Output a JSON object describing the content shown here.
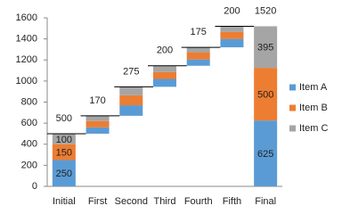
{
  "chart_data": {
    "type": "waterfall",
    "categories": [
      "Initial",
      "First",
      "Second",
      "Third",
      "Fourth",
      "Fifth",
      "Final"
    ],
    "series": [
      {
        "name": "Item A",
        "color": "#5b9bd5",
        "values": [
          250,
          60,
          100,
          75,
          60,
          80,
          625
        ]
      },
      {
        "name": "Item B",
        "color": "#ed7d31",
        "values": [
          150,
          60,
          95,
          65,
          65,
          65,
          500
        ]
      },
      {
        "name": "Item C",
        "color": "#a5a5a5",
        "values": [
          100,
          50,
          80,
          60,
          50,
          55,
          395
        ]
      }
    ],
    "totals": [
      500,
      170,
      275,
      200,
      175,
      200,
      1520
    ],
    "ylim": [
      0,
      1600
    ],
    "yticks": [
      0,
      200,
      400,
      600,
      800,
      1000,
      1200,
      1400,
      1600
    ],
    "grid": false,
    "legend": "right"
  }
}
